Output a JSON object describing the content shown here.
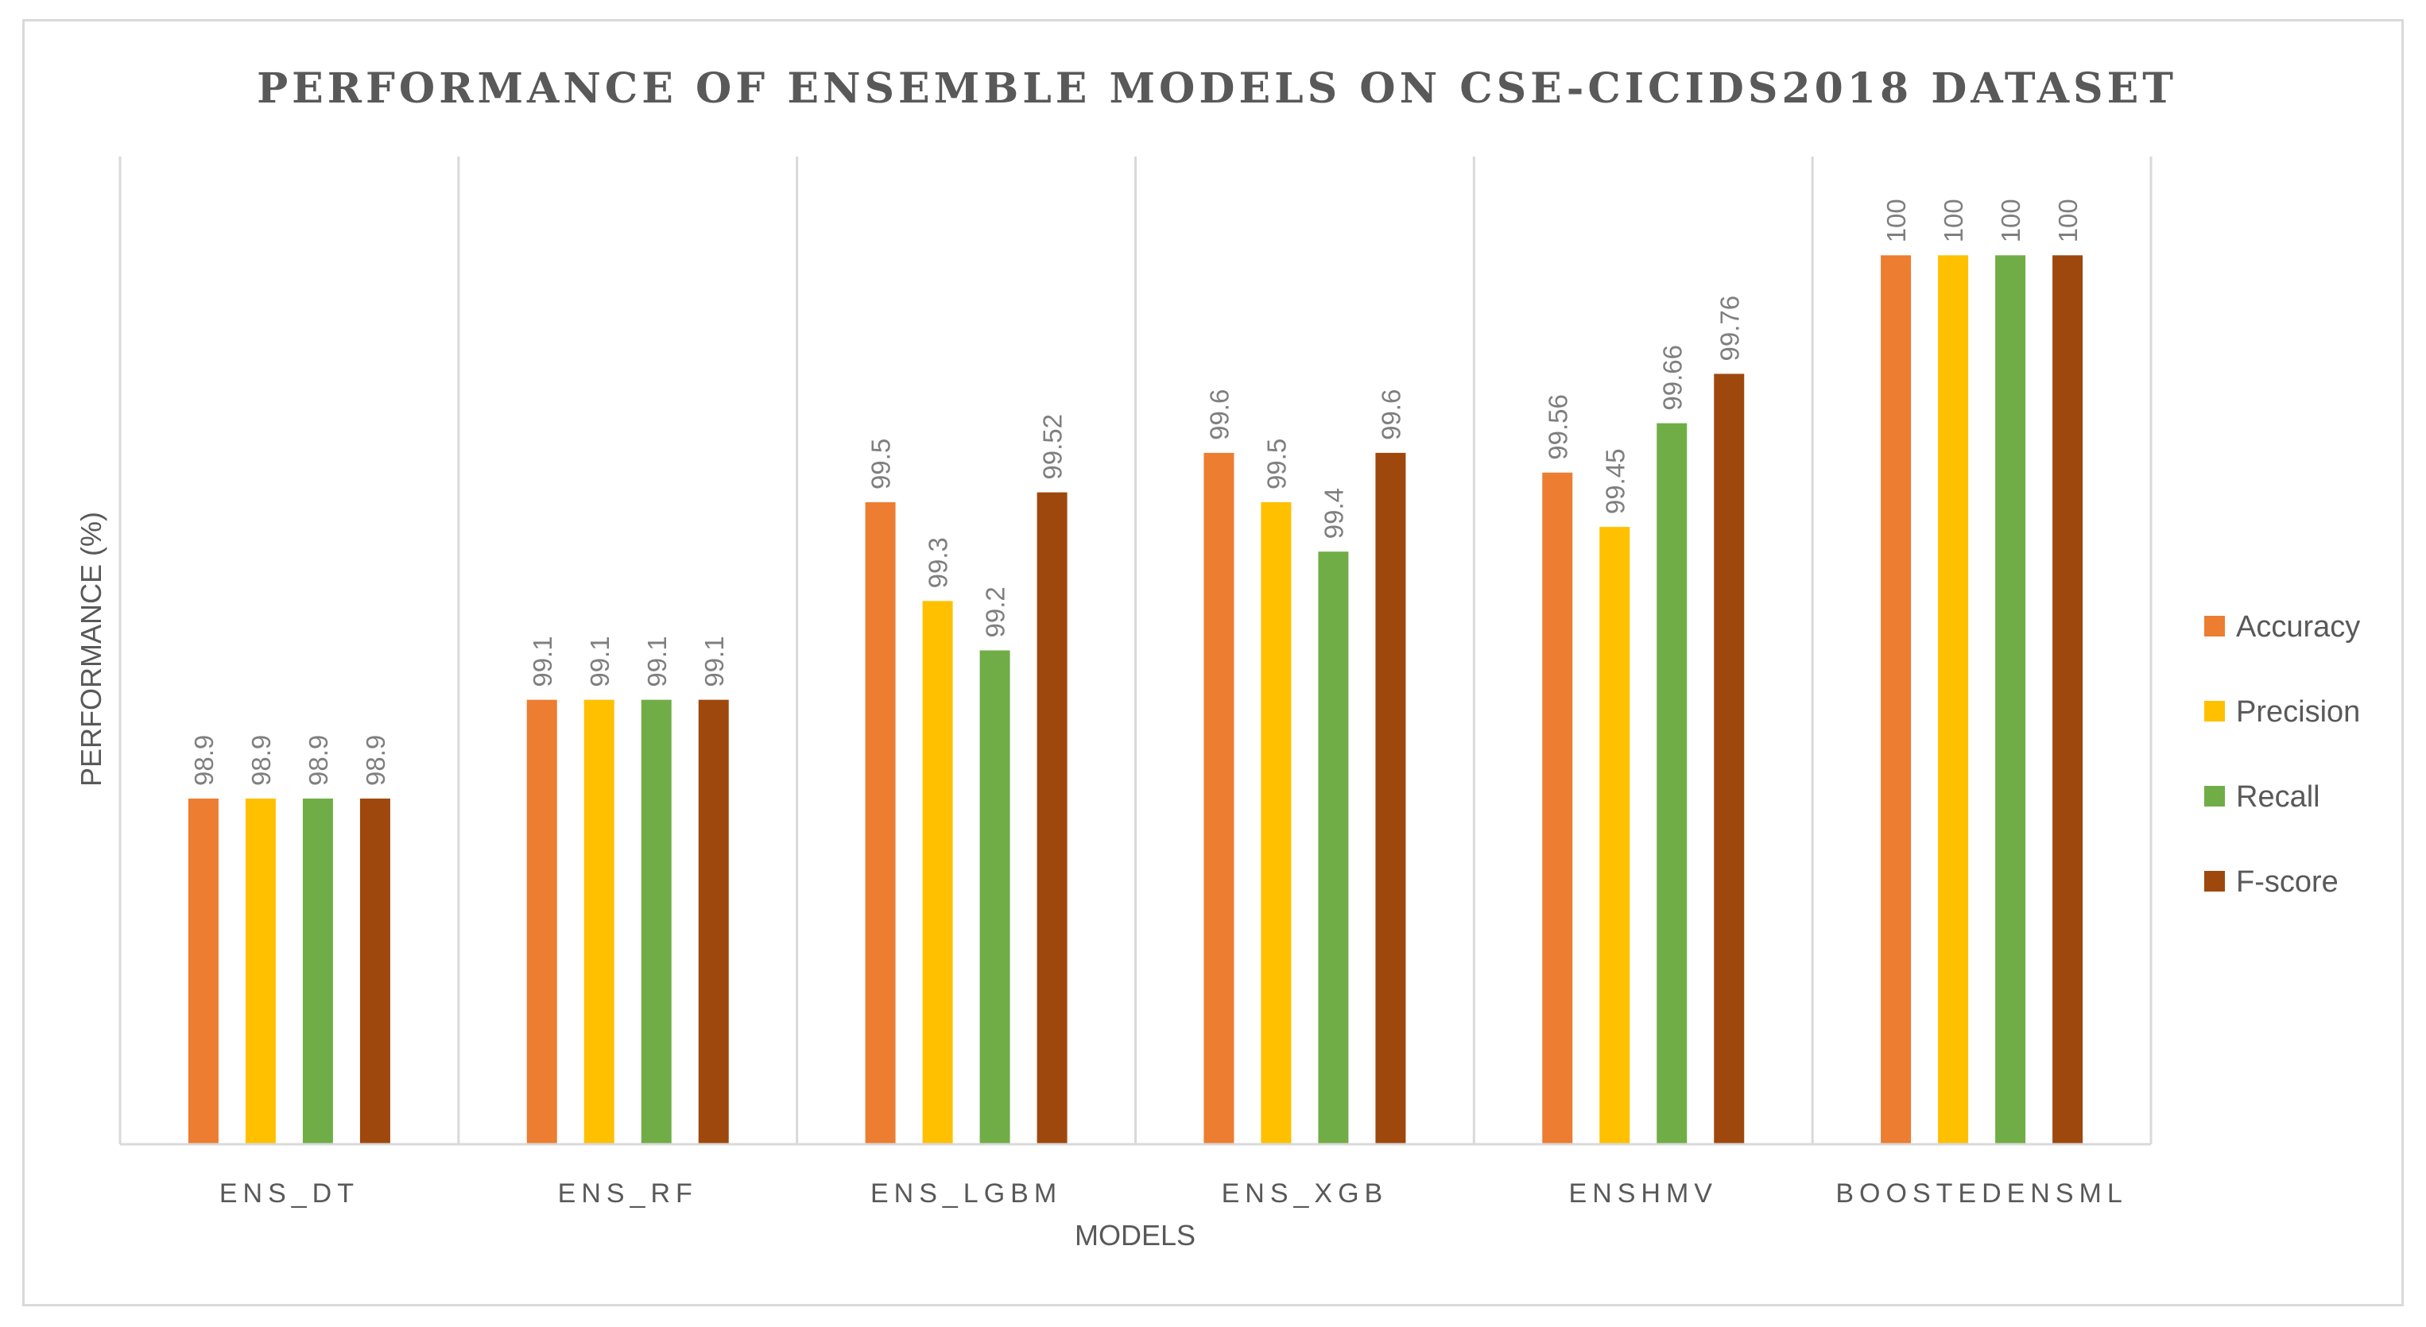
{
  "chart_data": {
    "type": "bar",
    "title": "PERFORMANCE OF ENSEMBLE MODELS ON CSE-CICIDS2018 DATASET",
    "xlabel": "MODELS",
    "ylabel": "PERFORMANCE (%)",
    "categories": [
      "ENS_DT",
      "ENS_RF",
      "ENS_LGBM",
      "ENS_XGB",
      "ENSHMV",
      "BOOSTEDENSML"
    ],
    "series": [
      {
        "name": "Accuracy",
        "color": "#ED7D31",
        "values": [
          98.9,
          99.1,
          99.5,
          99.6,
          99.56,
          100
        ]
      },
      {
        "name": "Precision",
        "color": "#FFC000",
        "values": [
          98.9,
          99.1,
          99.3,
          99.5,
          99.45,
          100
        ]
      },
      {
        "name": "Recall",
        "color": "#70AD47",
        "values": [
          98.9,
          99.1,
          99.2,
          99.4,
          99.66,
          100
        ]
      },
      {
        "name": "F-score",
        "color": "#9E480E",
        "values": [
          98.9,
          99.1,
          99.52,
          99.6,
          99.76,
          100
        ]
      }
    ],
    "ylim": [
      98.2,
      100.2
    ],
    "legend_position": "right",
    "grid": "vertical category separators"
  }
}
